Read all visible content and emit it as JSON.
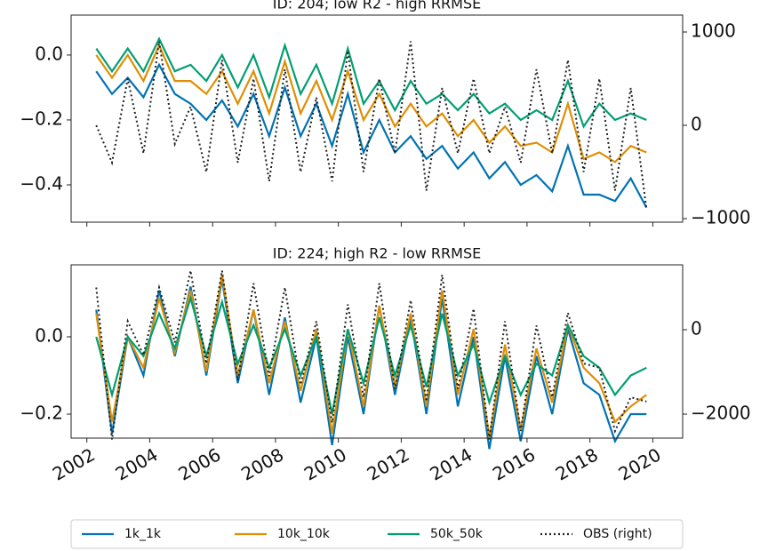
{
  "chart_data": [
    {
      "type": "line",
      "title": "ID: 204; low R2 - high RRMSE",
      "x": [
        2002.3,
        2002.8,
        2003.3,
        2003.8,
        2004.3,
        2004.8,
        2005.3,
        2005.8,
        2006.3,
        2006.8,
        2007.3,
        2007.8,
        2008.3,
        2008.8,
        2009.3,
        2009.8,
        2010.3,
        2010.8,
        2011.3,
        2011.8,
        2012.3,
        2012.8,
        2013.3,
        2013.8,
        2014.3,
        2014.8,
        2015.3,
        2015.8,
        2016.3,
        2016.8,
        2017.3,
        2017.8,
        2018.3,
        2018.8,
        2019.3,
        2019.8
      ],
      "xlim": [
        2001.5,
        2020.95
      ],
      "xticks": [
        2002,
        2004,
        2006,
        2008,
        2010,
        2012,
        2014,
        2016,
        2018,
        2020
      ],
      "ylim": [
        -0.515,
        0.123
      ],
      "yticks": [
        {
          "value": -0.4,
          "label": "−0.4"
        },
        {
          "value": -0.2,
          "label": "−0.2"
        },
        {
          "value": 0,
          "label": "0.0"
        }
      ],
      "y2lim": [
        -1038,
        1181
      ],
      "y2ticks": [
        {
          "value": -1000,
          "label": "−1000"
        },
        0,
        1000
      ],
      "series": [
        {
          "name": "1k_1k",
          "color": "#0173b2",
          "linestyle": "solid",
          "values": [
            -0.05,
            -0.12,
            -0.07,
            -0.13,
            -0.03,
            -0.12,
            -0.15,
            -0.2,
            -0.14,
            -0.22,
            -0.12,
            -0.25,
            -0.1,
            -0.25,
            -0.15,
            -0.28,
            -0.12,
            -0.3,
            -0.2,
            -0.3,
            -0.25,
            -0.32,
            -0.28,
            -0.35,
            -0.3,
            -0.38,
            -0.33,
            -0.4,
            -0.37,
            -0.42,
            -0.28,
            -0.43,
            -0.43,
            -0.45,
            -0.38,
            -0.47
          ]
        },
        {
          "name": "10k_10k",
          "color": "#de8f05",
          "linestyle": "solid",
          "values": [
            0.0,
            -0.07,
            0.0,
            -0.08,
            0.03,
            -0.08,
            -0.08,
            -0.12,
            -0.05,
            -0.15,
            -0.05,
            -0.18,
            -0.02,
            -0.18,
            -0.08,
            -0.2,
            -0.05,
            -0.2,
            -0.12,
            -0.22,
            -0.15,
            -0.22,
            -0.18,
            -0.25,
            -0.2,
            -0.27,
            -0.22,
            -0.28,
            -0.27,
            -0.3,
            -0.15,
            -0.32,
            -0.3,
            -0.33,
            -0.28,
            -0.3
          ]
        },
        {
          "name": "50k_50k",
          "color": "#029e73",
          "linestyle": "solid",
          "values": [
            0.02,
            -0.05,
            0.02,
            -0.05,
            0.05,
            -0.05,
            -0.03,
            -0.08,
            0.0,
            -0.1,
            0.0,
            -0.13,
            0.03,
            -0.12,
            -0.03,
            -0.15,
            0.02,
            -0.15,
            -0.08,
            -0.17,
            -0.08,
            -0.15,
            -0.12,
            -0.17,
            -0.12,
            -0.18,
            -0.15,
            -0.2,
            -0.17,
            -0.2,
            -0.08,
            -0.22,
            -0.15,
            -0.2,
            -0.18,
            -0.2
          ]
        },
        {
          "name": "OBS (right)",
          "color": "#222222",
          "linestyle": "dotted",
          "axis": "y2",
          "values": [
            0,
            -400,
            500,
            -300,
            900,
            -200,
            200,
            -500,
            700,
            -400,
            500,
            -600,
            600,
            -500,
            300,
            -600,
            800,
            -500,
            500,
            -300,
            900,
            -700,
            400,
            -300,
            500,
            -300,
            200,
            -400,
            600,
            -300,
            700,
            -500,
            500,
            -700,
            400,
            -900
          ]
        }
      ]
    },
    {
      "type": "line",
      "title": "ID: 224; high R2 - low RRMSE",
      "x": [
        2002.3,
        2002.8,
        2003.3,
        2003.8,
        2004.3,
        2004.8,
        2005.3,
        2005.8,
        2006.3,
        2006.8,
        2007.3,
        2007.8,
        2008.3,
        2008.8,
        2009.3,
        2009.8,
        2010.3,
        2010.8,
        2011.3,
        2011.8,
        2012.3,
        2012.8,
        2013.3,
        2013.8,
        2014.3,
        2014.8,
        2015.3,
        2015.8,
        2016.3,
        2016.8,
        2017.3,
        2017.8,
        2018.3,
        2018.8,
        2019.3,
        2019.8
      ],
      "xlim": [
        2001.5,
        2020.95
      ],
      "xticks": [
        2002,
        2004,
        2006,
        2008,
        2010,
        2012,
        2014,
        2016,
        2018,
        2020
      ],
      "ylim": [
        -0.262,
        0.186
      ],
      "yticks": [
        {
          "value": -0.2,
          "label": "−0.2"
        },
        {
          "value": 0,
          "label": "0.0"
        }
      ],
      "y2lim": [
        -2568,
        1537
      ],
      "y2ticks": [
        {
          "value": -2000,
          "label": "−2000"
        },
        0
      ],
      "legend": "bottom",
      "series": [
        {
          "name": "1k_1k",
          "color": "#0173b2",
          "linestyle": "solid",
          "values": [
            0.07,
            -0.25,
            0.0,
            -0.1,
            0.12,
            -0.05,
            0.13,
            -0.1,
            0.15,
            -0.12,
            0.07,
            -0.15,
            0.05,
            -0.17,
            0.0,
            -0.28,
            0.0,
            -0.2,
            0.08,
            -0.15,
            0.05,
            -0.2,
            0.1,
            -0.18,
            0.0,
            -0.29,
            -0.05,
            -0.27,
            -0.05,
            -0.2,
            0.02,
            -0.12,
            -0.15,
            -0.27,
            -0.2,
            -0.2
          ]
        },
        {
          "name": "10k_10k",
          "color": "#de8f05",
          "linestyle": "solid",
          "values": [
            0.06,
            -0.22,
            0.0,
            -0.08,
            0.1,
            -0.04,
            0.12,
            -0.09,
            0.16,
            -0.1,
            0.07,
            -0.12,
            0.04,
            -0.14,
            0.02,
            -0.25,
            0.02,
            -0.18,
            0.08,
            -0.13,
            0.06,
            -0.18,
            0.12,
            -0.15,
            0.02,
            -0.26,
            -0.02,
            -0.24,
            -0.03,
            -0.17,
            0.03,
            -0.08,
            -0.12,
            -0.22,
            -0.18,
            -0.15
          ]
        },
        {
          "name": "50k_50k",
          "color": "#029e73",
          "linestyle": "solid",
          "values": [
            0.0,
            -0.15,
            0.0,
            -0.05,
            0.06,
            -0.03,
            0.1,
            -0.05,
            0.09,
            -0.07,
            0.03,
            -0.08,
            0.02,
            -0.1,
            0.0,
            -0.2,
            0.02,
            -0.12,
            0.05,
            -0.1,
            0.03,
            -0.13,
            0.06,
            -0.1,
            -0.02,
            -0.17,
            -0.05,
            -0.15,
            -0.07,
            -0.1,
            0.03,
            -0.05,
            -0.08,
            -0.15,
            -0.1,
            -0.08
          ]
        },
        {
          "name": "OBS (right)",
          "color": "#222222",
          "linestyle": "dotted",
          "axis": "y2",
          "values": [
            1000,
            -2600,
            200,
            -600,
            1000,
            -300,
            1400,
            -800,
            1400,
            -1200,
            1100,
            -1100,
            1000,
            -1300,
            200,
            -2200,
            600,
            -1600,
            1100,
            -1400,
            700,
            -1700,
            1300,
            -1400,
            500,
            -2600,
            200,
            -2400,
            100,
            -1600,
            400,
            -800,
            -900,
            -2400,
            -1600,
            -1700
          ]
        }
      ]
    }
  ]
}
